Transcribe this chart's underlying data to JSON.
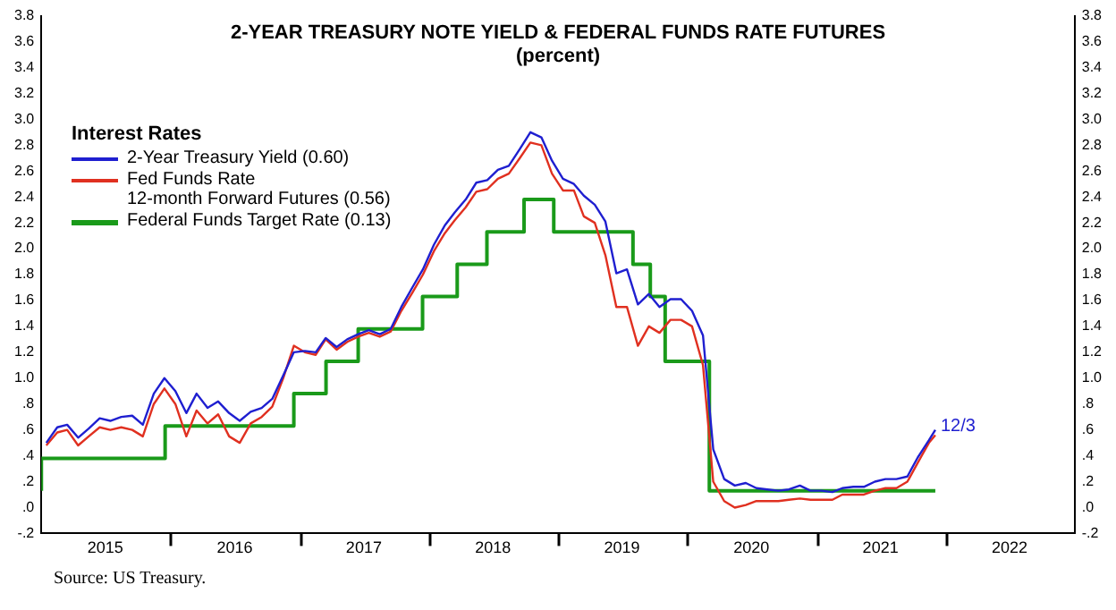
{
  "chart_data": {
    "type": "line",
    "title": "2-YEAR TREASURY NOTE YIELD & FEDERAL FUNDS RATE FUTURES",
    "subtitle": "(percent)",
    "legend_title": "Interest Rates",
    "legend": "top left",
    "grid": false,
    "xlim": [
      "2015-01-01",
      "2023-01-01"
    ],
    "xticks": [
      {
        "value": "2015-07-01",
        "label": "2015"
      },
      {
        "value": "2016-01-01",
        "label": null
      },
      {
        "value": "2016-07-01",
        "label": "2016"
      },
      {
        "value": "2017-01-01",
        "label": null
      },
      {
        "value": "2017-07-01",
        "label": "2017"
      },
      {
        "value": "2018-01-01",
        "label": null
      },
      {
        "value": "2018-07-01",
        "label": "2018"
      },
      {
        "value": "2019-01-01",
        "label": null
      },
      {
        "value": "2019-07-01",
        "label": "2019"
      },
      {
        "value": "2020-01-01",
        "label": null
      },
      {
        "value": "2020-07-01",
        "label": "2020"
      },
      {
        "value": "2021-01-01",
        "label": null
      },
      {
        "value": "2021-07-01",
        "label": "2021"
      },
      {
        "value": "2022-01-01",
        "label": null
      },
      {
        "value": "2022-07-01",
        "label": "2022"
      }
    ],
    "ylim": [
      -0.2,
      3.8
    ],
    "yticks": [
      {
        "value": -0.2,
        "label": "-.2"
      },
      {
        "value": 0,
        "label": ".0"
      },
      {
        "value": 0.2,
        "label": ".2"
      },
      {
        "value": 0.4,
        "label": ".4"
      },
      {
        "value": 0.6,
        "label": ".6"
      },
      {
        "value": 0.8,
        "label": ".8"
      },
      {
        "value": 1,
        "label": "1.0"
      },
      {
        "value": 1.2,
        "label": "1.2"
      },
      {
        "value": 1.4,
        "label": "1.4"
      },
      {
        "value": 1.6,
        "label": "1.6"
      },
      {
        "value": 1.8,
        "label": "1.8"
      },
      {
        "value": 2,
        "label": "2.0"
      },
      {
        "value": 2.2,
        "label": "2.2"
      },
      {
        "value": 2.4,
        "label": "2.4"
      },
      {
        "value": 2.6,
        "label": "2.6"
      },
      {
        "value": 2.8,
        "label": "2.8"
      },
      {
        "value": 3,
        "label": "3.0"
      },
      {
        "value": 3.2,
        "label": "3.2"
      },
      {
        "value": 3.4,
        "label": "3.4"
      },
      {
        "value": 3.6,
        "label": "3.6"
      },
      {
        "value": 3.8,
        "label": "3.8"
      }
    ],
    "y2lim": [
      -0.2,
      3.8
    ],
    "y2ticks": [
      {
        "value": -0.2,
        "label": "-.2"
      },
      {
        "value": 0,
        "label": ".0"
      },
      {
        "value": 0.2,
        "label": ".2"
      },
      {
        "value": 0.4,
        "label": ".4"
      },
      {
        "value": 0.6,
        "label": ".6"
      },
      {
        "value": 0.8,
        "label": ".8"
      },
      {
        "value": 1,
        "label": "1.0"
      },
      {
        "value": 1.2,
        "label": "1.2"
      },
      {
        "value": 1.4,
        "label": "1.4"
      },
      {
        "value": 1.6,
        "label": "1.6"
      },
      {
        "value": 1.8,
        "label": "1.8"
      },
      {
        "value": 2,
        "label": "2.0"
      },
      {
        "value": 2.2,
        "label": "2.2"
      },
      {
        "value": 2.4,
        "label": "2.4"
      },
      {
        "value": 2.6,
        "label": "2.6"
      },
      {
        "value": 2.8,
        "label": "2.8"
      },
      {
        "value": 3,
        "label": "3.0"
      },
      {
        "value": 3.2,
        "label": "3.2"
      },
      {
        "value": 3.4,
        "label": "3.4"
      },
      {
        "value": 3.6,
        "label": "3.6"
      },
      {
        "value": 3.8,
        "label": "3.8"
      }
    ],
    "series": [
      {
        "name": "2-Year Treasury Yield (0.60)",
        "color": "#1f1fd0",
        "x": [
          "2015-01-15",
          "2015-02-15",
          "2015-03-15",
          "2015-04-15",
          "2015-05-15",
          "2015-06-15",
          "2015-07-15",
          "2015-08-15",
          "2015-09-15",
          "2015-10-15",
          "2015-11-15",
          "2015-12-15",
          "2016-01-15",
          "2016-02-15",
          "2016-03-15",
          "2016-04-15",
          "2016-05-15",
          "2016-06-15",
          "2016-07-15",
          "2016-08-15",
          "2016-09-15",
          "2016-10-15",
          "2016-11-15",
          "2016-12-15",
          "2017-01-15",
          "2017-02-15",
          "2017-03-15",
          "2017-04-15",
          "2017-05-15",
          "2017-06-15",
          "2017-07-15",
          "2017-08-15",
          "2017-09-15",
          "2017-10-15",
          "2017-11-15",
          "2017-12-15",
          "2018-01-15",
          "2018-02-15",
          "2018-03-15",
          "2018-04-15",
          "2018-05-15",
          "2018-06-15",
          "2018-07-15",
          "2018-08-15",
          "2018-09-15",
          "2018-10-15",
          "2018-11-15",
          "2018-12-15",
          "2019-01-15",
          "2019-02-15",
          "2019-03-15",
          "2019-04-15",
          "2019-05-15",
          "2019-06-15",
          "2019-07-15",
          "2019-08-15",
          "2019-09-15",
          "2019-10-15",
          "2019-11-15",
          "2019-12-15",
          "2020-01-15",
          "2020-02-15",
          "2020-03-15",
          "2020-04-15",
          "2020-05-15",
          "2020-06-15",
          "2020-07-15",
          "2020-08-15",
          "2020-09-15",
          "2020-10-15",
          "2020-11-15",
          "2020-12-15",
          "2021-01-15",
          "2021-02-15",
          "2021-03-15",
          "2021-04-15",
          "2021-05-15",
          "2021-06-15",
          "2021-07-15",
          "2021-08-15",
          "2021-09-15",
          "2021-10-15",
          "2021-11-15",
          "2021-12-03"
        ],
        "values": [
          0.5,
          0.62,
          0.64,
          0.54,
          0.61,
          0.69,
          0.67,
          0.7,
          0.71,
          0.64,
          0.88,
          1.0,
          0.9,
          0.73,
          0.88,
          0.77,
          0.82,
          0.73,
          0.67,
          0.74,
          0.77,
          0.84,
          1.02,
          1.2,
          1.21,
          1.2,
          1.31,
          1.24,
          1.3,
          1.34,
          1.37,
          1.34,
          1.38,
          1.55,
          1.7,
          1.84,
          2.03,
          2.18,
          2.28,
          2.38,
          2.51,
          2.53,
          2.61,
          2.64,
          2.77,
          2.9,
          2.86,
          2.68,
          2.54,
          2.5,
          2.41,
          2.34,
          2.21,
          1.81,
          1.84,
          1.57,
          1.65,
          1.55,
          1.61,
          1.61,
          1.52,
          1.33,
          0.45,
          0.22,
          0.17,
          0.19,
          0.15,
          0.14,
          0.13,
          0.14,
          0.17,
          0.13,
          0.13,
          0.12,
          0.15,
          0.16,
          0.16,
          0.2,
          0.22,
          0.22,
          0.24,
          0.39,
          0.52,
          0.6
        ]
      },
      {
        "name": "Fed Funds Rate\n12-month Forward Futures (0.56)",
        "color": "#e03020",
        "x": [
          "2015-01-15",
          "2015-02-15",
          "2015-03-15",
          "2015-04-15",
          "2015-05-15",
          "2015-06-15",
          "2015-07-15",
          "2015-08-15",
          "2015-09-15",
          "2015-10-15",
          "2015-11-15",
          "2015-12-15",
          "2016-01-15",
          "2016-02-15",
          "2016-03-15",
          "2016-04-15",
          "2016-05-15",
          "2016-06-15",
          "2016-07-15",
          "2016-08-15",
          "2016-09-15",
          "2016-10-15",
          "2016-11-15",
          "2016-12-15",
          "2017-01-15",
          "2017-02-15",
          "2017-03-15",
          "2017-04-15",
          "2017-05-15",
          "2017-06-15",
          "2017-07-15",
          "2017-08-15",
          "2017-09-15",
          "2017-10-15",
          "2017-11-15",
          "2017-12-15",
          "2018-01-15",
          "2018-02-15",
          "2018-03-15",
          "2018-04-15",
          "2018-05-15",
          "2018-06-15",
          "2018-07-15",
          "2018-08-15",
          "2018-09-15",
          "2018-10-15",
          "2018-11-15",
          "2018-12-15",
          "2019-01-15",
          "2019-02-15",
          "2019-03-15",
          "2019-04-15",
          "2019-05-15",
          "2019-06-15",
          "2019-07-15",
          "2019-08-15",
          "2019-09-15",
          "2019-10-15",
          "2019-11-15",
          "2019-12-15",
          "2020-01-15",
          "2020-02-15",
          "2020-03-15",
          "2020-04-15",
          "2020-05-15",
          "2020-06-15",
          "2020-07-15",
          "2020-08-15",
          "2020-09-15",
          "2020-10-15",
          "2020-11-15",
          "2020-12-15",
          "2021-01-15",
          "2021-02-15",
          "2021-03-15",
          "2021-04-15",
          "2021-05-15",
          "2021-06-15",
          "2021-07-15",
          "2021-08-15",
          "2021-09-15",
          "2021-10-15",
          "2021-11-15",
          "2021-12-03"
        ],
        "values": [
          0.48,
          0.58,
          0.6,
          0.48,
          0.55,
          0.62,
          0.6,
          0.62,
          0.6,
          0.55,
          0.8,
          0.92,
          0.8,
          0.55,
          0.75,
          0.65,
          0.72,
          0.55,
          0.5,
          0.65,
          0.7,
          0.78,
          1.0,
          1.25,
          1.2,
          1.18,
          1.3,
          1.22,
          1.28,
          1.32,
          1.35,
          1.32,
          1.36,
          1.52,
          1.66,
          1.8,
          1.98,
          2.12,
          2.22,
          2.32,
          2.44,
          2.46,
          2.54,
          2.58,
          2.7,
          2.82,
          2.8,
          2.58,
          2.45,
          2.45,
          2.25,
          2.2,
          1.95,
          1.55,
          1.55,
          1.25,
          1.4,
          1.35,
          1.45,
          1.45,
          1.4,
          1.1,
          0.2,
          0.05,
          0.0,
          0.02,
          0.05,
          0.05,
          0.05,
          0.06,
          0.07,
          0.06,
          0.06,
          0.06,
          0.1,
          0.1,
          0.1,
          0.13,
          0.15,
          0.15,
          0.2,
          0.35,
          0.5,
          0.56
        ]
      },
      {
        "name": "Federal Funds Target Rate (0.13)",
        "color": "#1a9a1a",
        "type": "step",
        "x": [
          "2015-01-01",
          "2015-12-17",
          "2016-12-15",
          "2017-03-16",
          "2017-06-15",
          "2017-12-14",
          "2018-03-22",
          "2018-06-14",
          "2018-09-27",
          "2018-12-20",
          "2019-08-01",
          "2019-09-19",
          "2019-10-31",
          "2020-03-04",
          "2020-03-16",
          "2021-12-03"
        ],
        "values": [
          0.13,
          0.38,
          0.63,
          0.88,
          1.13,
          1.38,
          1.63,
          1.88,
          2.13,
          2.38,
          2.13,
          1.88,
          1.63,
          1.13,
          0.13,
          0.13
        ]
      }
    ],
    "annotations": [
      {
        "text": "12/3",
        "x": "2021-12-03",
        "y": 0.6
      },
      "Source: US Treasury."
    ]
  }
}
